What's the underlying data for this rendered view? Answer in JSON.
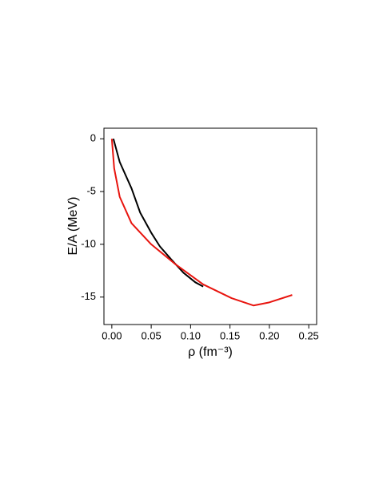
{
  "chart_data": {
    "type": "line",
    "xlabel": "ρ (fm⁻³)",
    "ylabel": "E/A  (MeV)",
    "xlim": [
      -0.01,
      0.26
    ],
    "ylim": [
      -17.6,
      1
    ],
    "xticks": [
      {
        "value": 0,
        "label": "0.00"
      },
      0.05,
      {
        "value": 0.1,
        "label": "0.10"
      },
      0.15,
      {
        "value": 0.2,
        "label": "0.20"
      },
      0.25
    ],
    "yticks": [
      0,
      -5,
      -10,
      -15
    ],
    "series": [
      {
        "color": "#000000",
        "x": [
          0.002,
          0.01,
          0.025,
          0.036,
          0.05,
          0.061,
          0.075,
          0.091,
          0.106,
          0.116
        ],
        "values": [
          0,
          -2.2,
          -4.7,
          -7.0,
          -8.9,
          -10.2,
          -11.4,
          -12.7,
          -13.6,
          -14.0
        ]
      },
      {
        "color": "#e8150f",
        "x": [
          0.0,
          0.003,
          0.01,
          0.025,
          0.05,
          0.081,
          0.116,
          0.152,
          0.18,
          0.2,
          0.229
        ],
        "values": [
          0,
          -2.8,
          -5.5,
          -8.0,
          -10.0,
          -11.9,
          -13.8,
          -15.1,
          -15.8,
          -15.5,
          -14.8
        ]
      }
    ]
  }
}
